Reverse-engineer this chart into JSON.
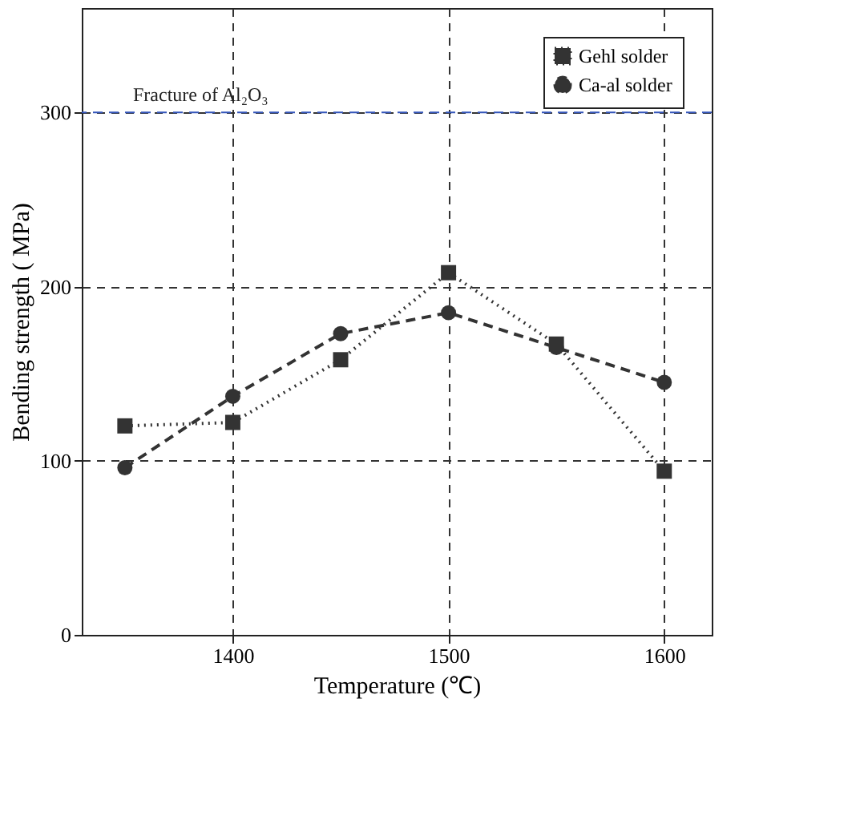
{
  "chart_data": {
    "type": "line",
    "xlabel": "Temperature (℃)",
    "ylabel": "Bending strength ( MPa)",
    "x": [
      1350,
      1400,
      1450,
      1500,
      1550,
      1600
    ],
    "series": [
      {
        "name": "Gehl solder",
        "color": "#333333",
        "marker": "square",
        "line_style": "dotted",
        "values": [
          120,
          122,
          158,
          208,
          167,
          94
        ]
      },
      {
        "name": "Ca-al solder",
        "color": "#333333",
        "marker": "circle",
        "line_style": "dashed",
        "values": [
          96,
          137,
          173,
          185,
          165,
          145
        ]
      }
    ],
    "xlim": [
      1330,
      1622
    ],
    "ylim": [
      0,
      360
    ],
    "xticks": [
      1400,
      1500,
      1600
    ],
    "yticks": [
      0,
      100,
      200,
      300
    ],
    "ref_lines": [
      {
        "axis": "y",
        "value": 300,
        "label": "Fracture of Al₂O₃",
        "color": "#3355bb",
        "line_style": "dashed"
      }
    ],
    "grid": true,
    "legend": "top right"
  }
}
